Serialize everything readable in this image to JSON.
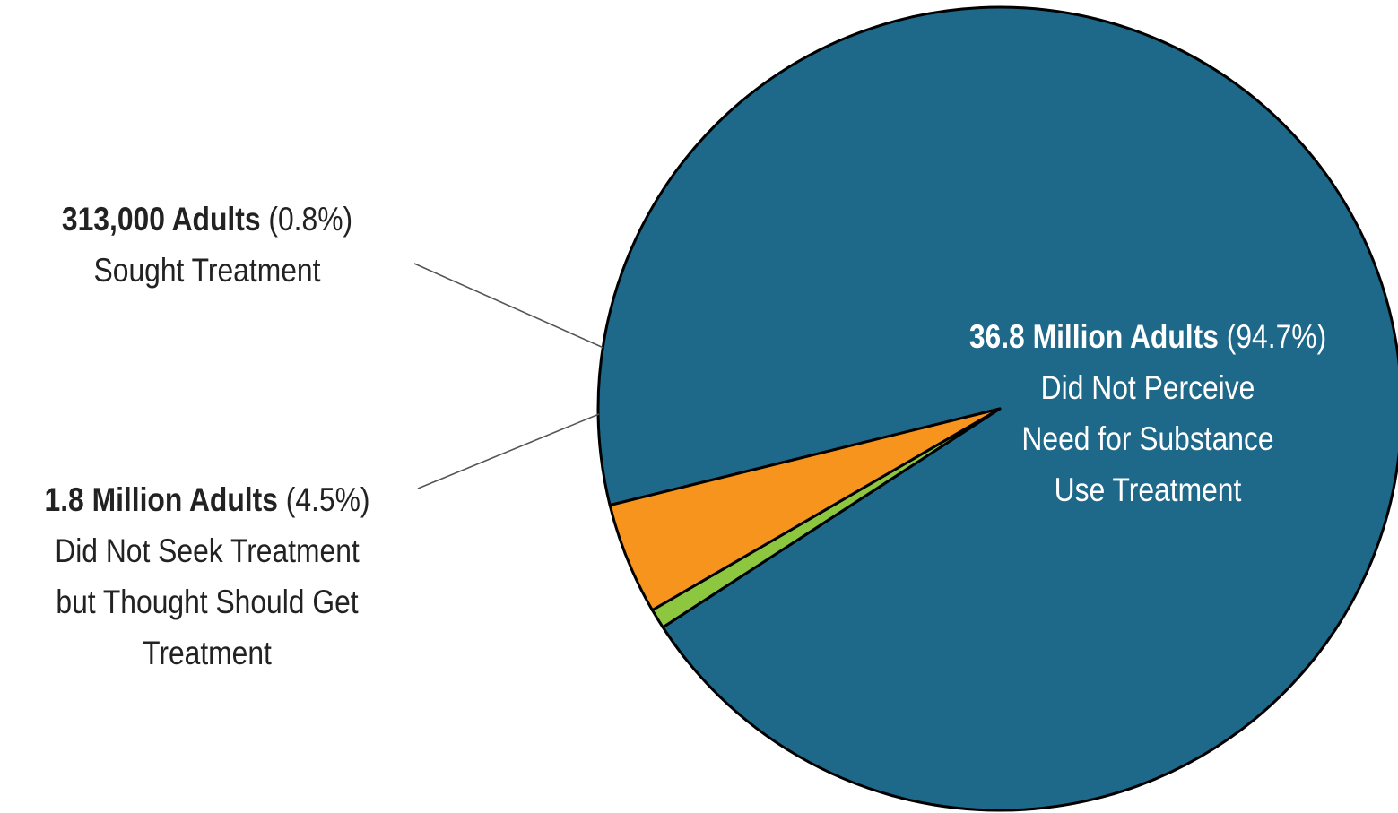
{
  "chart_data": {
    "type": "pie",
    "slices": [
      {
        "value_label": "36.8 Million Adults",
        "percent_label": "(94.7%)",
        "percent": 94.7,
        "description": [
          "Did Not Perceive",
          "Need for Substance",
          "Use Treatment"
        ],
        "color": "#1e6889"
      },
      {
        "value_label": "313,000 Adults",
        "percent_label": "(0.8%)",
        "percent": 0.8,
        "description": [
          "Sought Treatment"
        ],
        "color": "#8dc63f"
      },
      {
        "value_label": "1.8 Million Adults",
        "percent_label": "(4.5%)",
        "percent": 4.5,
        "description": [
          "Did Not Seek Treatment",
          "but Thought Should Get",
          "Treatment"
        ],
        "color": "#f7941d"
      }
    ],
    "title": "",
    "legend": "none"
  }
}
